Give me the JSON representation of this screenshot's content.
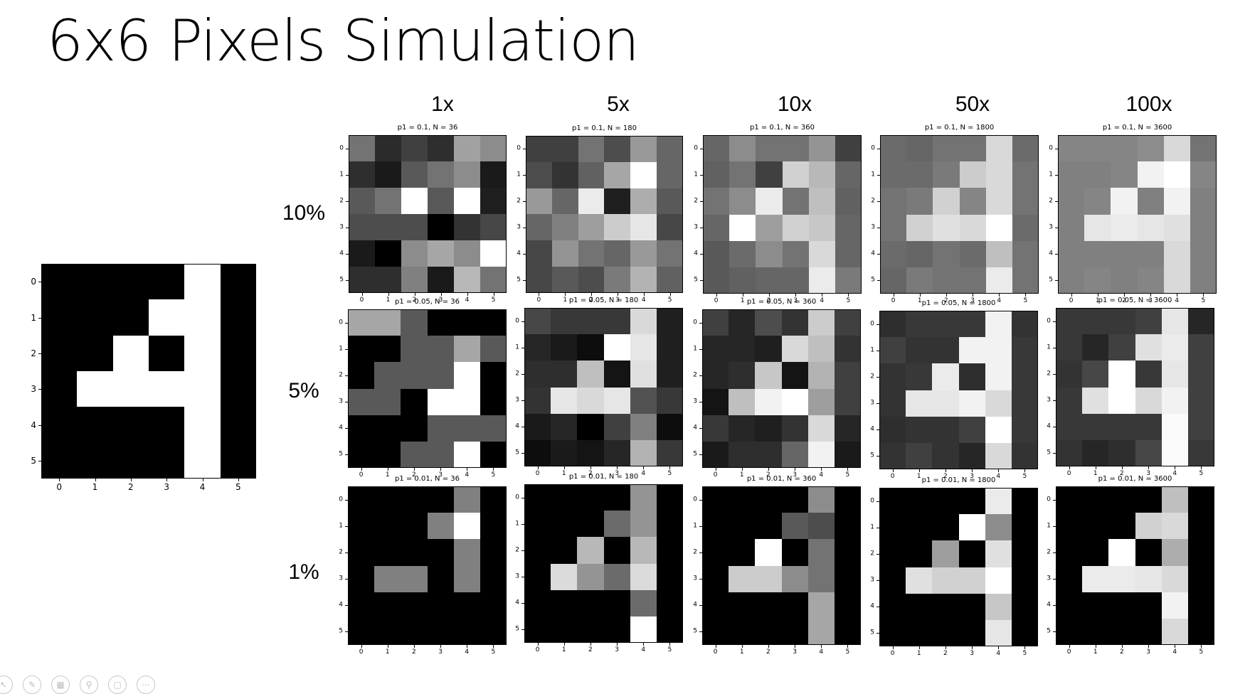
{
  "slide": {
    "title": "6x6 Pixels Simulation",
    "column_labels": [
      "1x",
      "5x",
      "10x",
      "50x",
      "100x"
    ],
    "row_labels": [
      "10%",
      "5%",
      "1%"
    ]
  },
  "chart_data": [
    {
      "type": "heatmap",
      "id": "original",
      "colormap": "gray",
      "title": "",
      "x_ticks": [
        "0",
        "1",
        "2",
        "3",
        "4",
        "5"
      ],
      "y_ticks": [
        "0",
        "1",
        "2",
        "3",
        "4",
        "5"
      ],
      "values": [
        [
          0,
          0,
          0,
          0,
          1,
          0
        ],
        [
          0,
          0,
          0,
          1,
          1,
          0
        ],
        [
          0,
          0,
          1,
          0,
          1,
          0
        ],
        [
          0,
          1,
          1,
          1,
          1,
          0
        ],
        [
          0,
          0,
          0,
          0,
          1,
          0
        ],
        [
          0,
          0,
          0,
          0,
          1,
          0
        ]
      ]
    },
    {
      "type": "heatmap",
      "id": "p10_1x",
      "title": "p1 = 0.1, N = 36",
      "colormap": "gray",
      "x_ticks": [
        "0",
        "1",
        "2",
        "3",
        "4",
        "5"
      ],
      "y_ticks": [
        "0",
        "1",
        "2",
        "3",
        "4",
        "5"
      ],
      "values": [
        [
          0.45,
          0.17,
          0.25,
          0.18,
          0.63,
          0.55
        ],
        [
          0.18,
          0.1,
          0.35,
          0.45,
          0.55,
          0.1
        ],
        [
          0.35,
          0.45,
          1.0,
          0.35,
          1.0,
          0.12
        ],
        [
          0.3,
          0.3,
          0.3,
          0.0,
          0.2,
          0.28
        ],
        [
          0.1,
          0.0,
          0.55,
          0.65,
          0.55,
          1.0
        ],
        [
          0.18,
          0.18,
          0.5,
          0.1,
          0.72,
          0.45
        ]
      ]
    },
    {
      "type": "heatmap",
      "id": "p10_5x",
      "title": "p1 = 0.1, N = 180",
      "colormap": "gray",
      "x_ticks": [
        "0",
        "1",
        "2",
        "3",
        "4",
        "5"
      ],
      "y_ticks": [
        "0",
        "1",
        "2",
        "3",
        "4",
        "5"
      ],
      "values": [
        [
          0.25,
          0.25,
          0.45,
          0.3,
          0.6,
          0.4
        ],
        [
          0.3,
          0.2,
          0.38,
          0.65,
          1.0,
          0.4
        ],
        [
          0.6,
          0.4,
          0.92,
          0.12,
          0.68,
          0.35
        ],
        [
          0.4,
          0.5,
          0.62,
          0.8,
          0.9,
          0.28
        ],
        [
          0.28,
          0.58,
          0.45,
          0.4,
          0.6,
          0.45
        ],
        [
          0.28,
          0.35,
          0.3,
          0.48,
          0.7,
          0.38
        ]
      ]
    },
    {
      "type": "heatmap",
      "id": "p10_10x",
      "title": "p1 = 0.1, N = 360",
      "colormap": "gray",
      "x_ticks": [
        "0",
        "1",
        "2",
        "3",
        "4",
        "5"
      ],
      "y_ticks": [
        "0",
        "1",
        "2",
        "3",
        "4",
        "5"
      ],
      "values": [
        [
          0.4,
          0.55,
          0.45,
          0.45,
          0.58,
          0.25
        ],
        [
          0.38,
          0.45,
          0.25,
          0.82,
          0.72,
          0.4
        ],
        [
          0.45,
          0.55,
          0.92,
          0.45,
          0.75,
          0.38
        ],
        [
          0.4,
          1.0,
          0.62,
          0.82,
          0.78,
          0.4
        ],
        [
          0.35,
          0.42,
          0.55,
          0.45,
          0.85,
          0.4
        ],
        [
          0.35,
          0.38,
          0.4,
          0.4,
          0.92,
          0.48
        ]
      ]
    },
    {
      "type": "heatmap",
      "id": "p10_50x",
      "title": "p1 = 0.1, N = 1800",
      "colormap": "gray",
      "x_ticks": [
        "0",
        "1",
        "2",
        "3",
        "4",
        "5"
      ],
      "y_ticks": [
        "0",
        "1",
        "2",
        "3",
        "4",
        "5"
      ],
      "values": [
        [
          0.42,
          0.4,
          0.45,
          0.45,
          0.85,
          0.42
        ],
        [
          0.42,
          0.42,
          0.48,
          0.8,
          0.85,
          0.45
        ],
        [
          0.45,
          0.48,
          0.82,
          0.52,
          0.85,
          0.45
        ],
        [
          0.45,
          0.82,
          0.88,
          0.85,
          1.0,
          0.42
        ],
        [
          0.42,
          0.4,
          0.45,
          0.42,
          0.75,
          0.45
        ],
        [
          0.4,
          0.48,
          0.45,
          0.45,
          0.92,
          0.45
        ]
      ]
    },
    {
      "type": "heatmap",
      "id": "p10_100x",
      "title": "p1 = 0.1, N = 3600",
      "colormap": "gray",
      "x_ticks": [
        "0",
        "1",
        "2",
        "3",
        "4",
        "5"
      ],
      "y_ticks": [
        "0",
        "1",
        "2",
        "3",
        "4",
        "5"
      ],
      "values": [
        [
          0.52,
          0.52,
          0.52,
          0.55,
          0.85,
          0.45
        ],
        [
          0.5,
          0.5,
          0.52,
          0.95,
          1.0,
          0.52
        ],
        [
          0.5,
          0.52,
          0.95,
          0.5,
          0.95,
          0.5
        ],
        [
          0.5,
          0.9,
          0.92,
          0.9,
          0.88,
          0.5
        ],
        [
          0.5,
          0.5,
          0.5,
          0.5,
          0.85,
          0.5
        ],
        [
          0.5,
          0.52,
          0.5,
          0.52,
          0.85,
          0.5
        ]
      ]
    },
    {
      "type": "heatmap",
      "id": "p5_1x",
      "title": "p1 = 0.05, N = 36",
      "colormap": "gray",
      "x_ticks": [
        "0",
        "1",
        "2",
        "3",
        "4",
        "5"
      ],
      "y_ticks": [
        "0",
        "1",
        "2",
        "3",
        "4",
        "5"
      ],
      "values": [
        [
          0.65,
          0.65,
          0.35,
          0.0,
          0.0,
          0.0
        ],
        [
          0.0,
          0.0,
          0.35,
          0.35,
          0.65,
          0.35
        ],
        [
          0.0,
          0.35,
          0.35,
          0.35,
          1.0,
          0.0
        ],
        [
          0.35,
          0.35,
          0.0,
          1.0,
          1.0,
          0.0
        ],
        [
          0.0,
          0.0,
          0.0,
          0.35,
          0.35,
          0.35
        ],
        [
          0.0,
          0.0,
          0.35,
          0.35,
          1.0,
          0.0
        ]
      ]
    },
    {
      "type": "heatmap",
      "id": "p5_5x",
      "title": "p1 = 0.05, N = 180",
      "colormap": "gray",
      "x_ticks": [
        "0",
        "1",
        "2",
        "3",
        "4",
        "5"
      ],
      "y_ticks": [
        "0",
        "1",
        "2",
        "3",
        "4",
        "5"
      ],
      "values": [
        [
          0.28,
          0.22,
          0.22,
          0.22,
          0.85,
          0.12
        ],
        [
          0.15,
          0.1,
          0.05,
          1.0,
          0.9,
          0.12
        ],
        [
          0.18,
          0.18,
          0.75,
          0.08,
          0.88,
          0.12
        ],
        [
          0.2,
          0.9,
          0.85,
          0.9,
          0.32,
          0.22
        ],
        [
          0.1,
          0.15,
          0.0,
          0.25,
          0.5,
          0.05
        ],
        [
          0.05,
          0.1,
          0.08,
          0.15,
          0.7,
          0.22
        ]
      ]
    },
    {
      "type": "heatmap",
      "id": "p5_10x",
      "title": "p1 = 0.05, N = 360",
      "colormap": "gray",
      "x_ticks": [
        "0",
        "1",
        "2",
        "3",
        "4",
        "5"
      ],
      "y_ticks": [
        "0",
        "1",
        "2",
        "3",
        "4",
        "5"
      ],
      "values": [
        [
          0.25,
          0.15,
          0.3,
          0.2,
          0.8,
          0.25
        ],
        [
          0.15,
          0.15,
          0.12,
          0.85,
          0.75,
          0.2
        ],
        [
          0.15,
          0.18,
          0.78,
          0.08,
          0.7,
          0.25
        ],
        [
          0.08,
          0.75,
          0.95,
          1.0,
          0.62,
          0.25
        ],
        [
          0.22,
          0.15,
          0.12,
          0.2,
          0.85,
          0.15
        ],
        [
          0.1,
          0.18,
          0.18,
          0.4,
          0.95,
          0.1
        ]
      ]
    },
    {
      "type": "heatmap",
      "id": "p5_50x",
      "title": "p1 = 0.05, N = 1800",
      "colormap": "gray",
      "x_ticks": [
        "0",
        "1",
        "2",
        "3",
        "4",
        "5"
      ],
      "y_ticks": [
        "0",
        "1",
        "2",
        "3",
        "4",
        "5"
      ],
      "values": [
        [
          0.18,
          0.22,
          0.22,
          0.22,
          0.95,
          0.2
        ],
        [
          0.25,
          0.2,
          0.2,
          0.95,
          0.95,
          0.22
        ],
        [
          0.2,
          0.22,
          0.92,
          0.18,
          0.95,
          0.22
        ],
        [
          0.2,
          0.9,
          0.9,
          0.95,
          0.85,
          0.22
        ],
        [
          0.18,
          0.2,
          0.2,
          0.25,
          1.0,
          0.22
        ],
        [
          0.2,
          0.25,
          0.2,
          0.15,
          0.85,
          0.2
        ]
      ]
    },
    {
      "type": "heatmap",
      "id": "p5_100x",
      "title": "p1 = 0.05, N = 3600",
      "colormap": "gray",
      "x_ticks": [
        "0",
        "1",
        "2",
        "3",
        "4",
        "5"
      ],
      "y_ticks": [
        "0",
        "1",
        "2",
        "3",
        "4",
        "5"
      ],
      "values": [
        [
          0.22,
          0.22,
          0.22,
          0.25,
          0.9,
          0.15
        ],
        [
          0.22,
          0.15,
          0.25,
          0.88,
          0.92,
          0.25
        ],
        [
          0.2,
          0.28,
          1.0,
          0.22,
          0.9,
          0.25
        ],
        [
          0.22,
          0.88,
          1.0,
          0.85,
          0.95,
          0.25
        ],
        [
          0.22,
          0.22,
          0.22,
          0.22,
          0.98,
          0.25
        ],
        [
          0.2,
          0.15,
          0.18,
          0.28,
          0.98,
          0.22
        ]
      ]
    },
    {
      "type": "heatmap",
      "id": "p1_1x",
      "title": "p1 = 0.01, N = 36",
      "colormap": "gray",
      "x_ticks": [
        "0",
        "1",
        "2",
        "3",
        "4",
        "5"
      ],
      "y_ticks": [
        "0",
        "1",
        "2",
        "3",
        "4",
        "5"
      ],
      "values": [
        [
          0,
          0,
          0,
          0,
          0.5,
          0
        ],
        [
          0,
          0,
          0,
          0.5,
          1,
          0
        ],
        [
          0,
          0,
          0,
          0,
          0.5,
          0
        ],
        [
          0,
          0.5,
          0.5,
          0,
          0.5,
          0
        ],
        [
          0,
          0,
          0,
          0,
          0,
          0
        ],
        [
          0,
          0,
          0,
          0,
          0,
          0
        ]
      ]
    },
    {
      "type": "heatmap",
      "id": "p1_5x",
      "title": "p1 = 0.01, N = 180",
      "colormap": "gray",
      "x_ticks": [
        "0",
        "1",
        "2",
        "3",
        "4",
        "5"
      ],
      "y_ticks": [
        "0",
        "1",
        "2",
        "3",
        "4",
        "5"
      ],
      "values": [
        [
          0,
          0,
          0,
          0,
          0.58,
          0
        ],
        [
          0,
          0,
          0,
          0.42,
          0.58,
          0
        ],
        [
          0,
          0,
          0.72,
          0,
          0.72,
          0
        ],
        [
          0,
          0.86,
          0.58,
          0.42,
          0.86,
          0
        ],
        [
          0,
          0,
          0,
          0,
          0.42,
          0
        ],
        [
          0,
          0,
          0,
          0,
          1,
          0
        ]
      ]
    },
    {
      "type": "heatmap",
      "id": "p1_10x",
      "title": "p1 = 0.01, N = 360",
      "colormap": "gray",
      "x_ticks": [
        "0",
        "1",
        "2",
        "3",
        "4",
        "5"
      ],
      "y_ticks": [
        "0",
        "1",
        "2",
        "3",
        "4",
        "5"
      ],
      "values": [
        [
          0,
          0,
          0,
          0,
          0.55,
          0
        ],
        [
          0,
          0,
          0,
          0.35,
          0.3,
          0
        ],
        [
          0,
          0,
          1,
          0,
          0.45,
          0
        ],
        [
          0,
          0.8,
          0.8,
          0.55,
          0.45,
          0
        ],
        [
          0,
          0,
          0,
          0,
          0.65,
          0
        ],
        [
          0,
          0,
          0,
          0,
          0.65,
          0
        ]
      ]
    },
    {
      "type": "heatmap",
      "id": "p1_50x",
      "title": "p1 = 0.01, N = 1800",
      "colormap": "gray",
      "x_ticks": [
        "0",
        "1",
        "2",
        "3",
        "4",
        "5"
      ],
      "y_ticks": [
        "0",
        "1",
        "2",
        "3",
        "4",
        "5"
      ],
      "values": [
        [
          0,
          0,
          0,
          0,
          0.92,
          0
        ],
        [
          0,
          0,
          0,
          1,
          0.55,
          0
        ],
        [
          0,
          0,
          0.62,
          0,
          0.88,
          0
        ],
        [
          0,
          0.88,
          0.82,
          0.82,
          1,
          0
        ],
        [
          0,
          0,
          0,
          0,
          0.78,
          0
        ],
        [
          0,
          0,
          0,
          0,
          0.9,
          0
        ]
      ]
    },
    {
      "type": "heatmap",
      "id": "p1_100x",
      "title": "p1 = 0.01, N = 3600",
      "colormap": "gray",
      "x_ticks": [
        "0",
        "1",
        "2",
        "3",
        "4",
        "5"
      ],
      "y_ticks": [
        "0",
        "1",
        "2",
        "3",
        "4",
        "5"
      ],
      "values": [
        [
          0,
          0,
          0,
          0,
          0.75,
          0
        ],
        [
          0,
          0,
          0,
          0.82,
          0.85,
          0
        ],
        [
          0,
          0,
          1,
          0,
          0.68,
          0
        ],
        [
          0,
          0.92,
          0.92,
          0.9,
          0.85,
          0
        ],
        [
          0,
          0,
          0,
          0,
          0.95,
          0
        ],
        [
          0,
          0,
          0,
          0,
          0.85,
          0
        ]
      ]
    }
  ]
}
